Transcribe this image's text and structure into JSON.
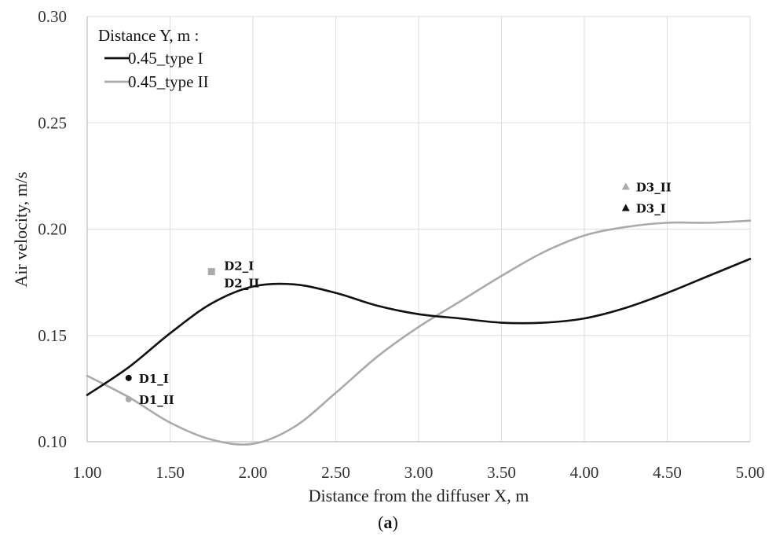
{
  "caption": {
    "open": "(",
    "letter": "a",
    "close": ")"
  },
  "colors": {
    "type1": "#111111",
    "type2": "#aaaaaa",
    "grid": "#dedede",
    "axis": "#bfbfbf"
  },
  "chart_data": {
    "type": "line",
    "xlabel": "Distance from the diffuser X, m",
    "ylabel": "Air velocity, m/s",
    "xlim": [
      1.0,
      5.0
    ],
    "ylim": [
      0.1,
      0.3
    ],
    "x_ticks": [
      1.0,
      1.5,
      2.0,
      2.5,
      3.0,
      3.5,
      4.0,
      4.5,
      5.0
    ],
    "x_tick_labels": [
      "1.00",
      "1.50",
      "2.00",
      "2.50",
      "3.00",
      "3.50",
      "4.00",
      "4.50",
      "5.00"
    ],
    "y_ticks": [
      0.1,
      0.15,
      0.2,
      0.25,
      0.3
    ],
    "y_tick_labels": [
      "0.10",
      "0.15",
      "0.20",
      "0.25",
      "0.30"
    ],
    "grid": true,
    "legend": {
      "title": "Distance Y, m :",
      "placement": "top-left"
    },
    "series": [
      {
        "name": "0.45_type I",
        "color": "#111111",
        "x": [
          1.0,
          1.25,
          1.5,
          1.75,
          2.0,
          2.25,
          2.5,
          2.75,
          3.0,
          3.25,
          3.5,
          3.75,
          4.0,
          4.25,
          4.5,
          4.75,
          5.0
        ],
        "y": [
          0.122,
          0.135,
          0.151,
          0.165,
          0.173,
          0.174,
          0.17,
          0.164,
          0.16,
          0.158,
          0.156,
          0.156,
          0.158,
          0.163,
          0.17,
          0.178,
          0.186
        ]
      },
      {
        "name": "0.45_type II",
        "color": "#aaaaaa",
        "x": [
          1.0,
          1.25,
          1.5,
          1.75,
          2.0,
          2.25,
          2.5,
          2.75,
          3.0,
          3.25,
          3.5,
          3.75,
          4.0,
          4.25,
          4.5,
          4.75,
          5.0
        ],
        "y": [
          0.131,
          0.121,
          0.109,
          0.101,
          0.099,
          0.107,
          0.123,
          0.14,
          0.154,
          0.166,
          0.178,
          0.189,
          0.197,
          0.201,
          0.203,
          0.203,
          0.204
        ]
      }
    ],
    "points": [
      {
        "label": "D1_I",
        "x": 1.25,
        "y": 0.13,
        "marker": "circle",
        "color": "#111111"
      },
      {
        "label": "D1_II",
        "x": 1.25,
        "y": 0.12,
        "marker": "circle",
        "color": "#aaaaaa"
      },
      {
        "label": "D2_I",
        "x": 1.75,
        "y": 0.18,
        "marker": "square",
        "color": "#aaaaaa"
      },
      {
        "label": "D2_II",
        "x": 1.75,
        "y": 0.18,
        "marker": "square",
        "color": "#aaaaaa"
      },
      {
        "label": "D3_II",
        "x": 4.25,
        "y": 0.22,
        "marker": "triangle",
        "color": "#aaaaaa"
      },
      {
        "label": "D3_I",
        "x": 4.25,
        "y": 0.21,
        "marker": "triangle",
        "color": "#111111"
      }
    ]
  }
}
